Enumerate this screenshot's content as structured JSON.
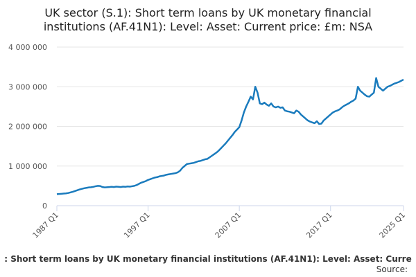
{
  "chart_data": {
    "type": "line",
    "title": [
      "UK sector (S.1): Short term loans by UK monetary financial",
      "institutions (AF.41N1): Level: Asset: Current price: £m: NSA"
    ],
    "caption": ": Short term loans by UK monetary financial institutions (AF.41N1): Level: Asset: Curre",
    "source": "Source:",
    "categories": [
      "1987 Q1",
      null,
      null,
      null,
      null,
      null,
      null,
      null,
      null,
      null,
      null,
      null,
      null,
      null,
      null,
      null,
      null,
      null,
      null,
      null,
      null,
      null,
      null,
      null,
      null,
      null,
      null,
      null,
      null,
      null,
      null,
      null,
      null,
      null,
      null,
      null,
      null,
      null,
      null,
      null,
      "1997 Q1",
      null,
      null,
      null,
      null,
      null,
      null,
      null,
      null,
      null,
      null,
      null,
      null,
      null,
      null,
      null,
      null,
      null,
      null,
      null,
      null,
      null,
      null,
      null,
      null,
      null,
      null,
      null,
      null,
      null,
      null,
      null,
      null,
      null,
      null,
      null,
      null,
      null,
      null,
      null,
      "2007 Q1",
      null,
      null,
      null,
      null,
      null,
      null,
      null,
      null,
      null,
      null,
      null,
      null,
      null,
      null,
      null,
      null,
      null,
      null,
      null,
      null,
      null,
      null,
      null,
      null,
      null,
      null,
      null,
      null,
      null,
      null,
      null,
      null,
      null,
      null,
      null,
      null,
      null,
      null,
      null,
      "2017 Q1",
      null,
      null,
      null,
      null,
      null,
      null,
      null,
      null,
      null,
      null,
      null,
      null,
      null,
      null,
      null,
      null,
      null,
      null,
      null,
      null,
      null,
      null,
      null,
      null,
      null,
      null,
      null,
      null,
      null,
      null,
      null,
      "2025 Q1"
    ],
    "values": [
      290000,
      295000,
      300000,
      305000,
      310000,
      320000,
      335000,
      350000,
      370000,
      390000,
      410000,
      425000,
      440000,
      450000,
      460000,
      465000,
      475000,
      490000,
      500000,
      495000,
      470000,
      460000,
      465000,
      470000,
      475000,
      470000,
      480000,
      475000,
      470000,
      480000,
      475000,
      485000,
      480000,
      490000,
      500000,
      520000,
      550000,
      580000,
      600000,
      620000,
      650000,
      670000,
      690000,
      710000,
      720000,
      740000,
      750000,
      760000,
      780000,
      790000,
      800000,
      810000,
      820000,
      840000,
      880000,
      950000,
      1000000,
      1050000,
      1060000,
      1070000,
      1080000,
      1100000,
      1120000,
      1130000,
      1150000,
      1170000,
      1180000,
      1220000,
      1260000,
      1300000,
      1340000,
      1390000,
      1450000,
      1510000,
      1570000,
      1640000,
      1710000,
      1780000,
      1860000,
      1920000,
      1980000,
      2150000,
      2350000,
      2500000,
      2620000,
      2750000,
      2680000,
      3000000,
      2850000,
      2580000,
      2560000,
      2600000,
      2550000,
      2520000,
      2580000,
      2500000,
      2480000,
      2500000,
      2470000,
      2480000,
      2400000,
      2380000,
      2370000,
      2350000,
      2330000,
      2400000,
      2370000,
      2300000,
      2250000,
      2200000,
      2150000,
      2120000,
      2100000,
      2080000,
      2130000,
      2060000,
      2070000,
      2150000,
      2200000,
      2250000,
      2300000,
      2350000,
      2380000,
      2400000,
      2430000,
      2480000,
      2520000,
      2550000,
      2580000,
      2620000,
      2650000,
      2700000,
      3000000,
      2900000,
      2850000,
      2800000,
      2760000,
      2750000,
      2800000,
      2850000,
      3220000,
      3000000,
      2950000,
      2900000,
      2950000,
      3000000,
      3020000,
      3050000,
      3080000,
      3100000,
      3120000,
      3150000,
      3180000
    ],
    "color": "#1a7bbd",
    "ylim": [
      0,
      4000000
    ],
    "yticks": [
      0,
      {
        "value": 1000000,
        "label": "1 000 000"
      },
      {
        "value": 2000000,
        "label": "2 000 000"
      },
      {
        "value": 3000000,
        "label": "3 000 000"
      },
      {
        "value": 4000000,
        "label": "4 000 000"
      }
    ],
    "grid": true
  }
}
